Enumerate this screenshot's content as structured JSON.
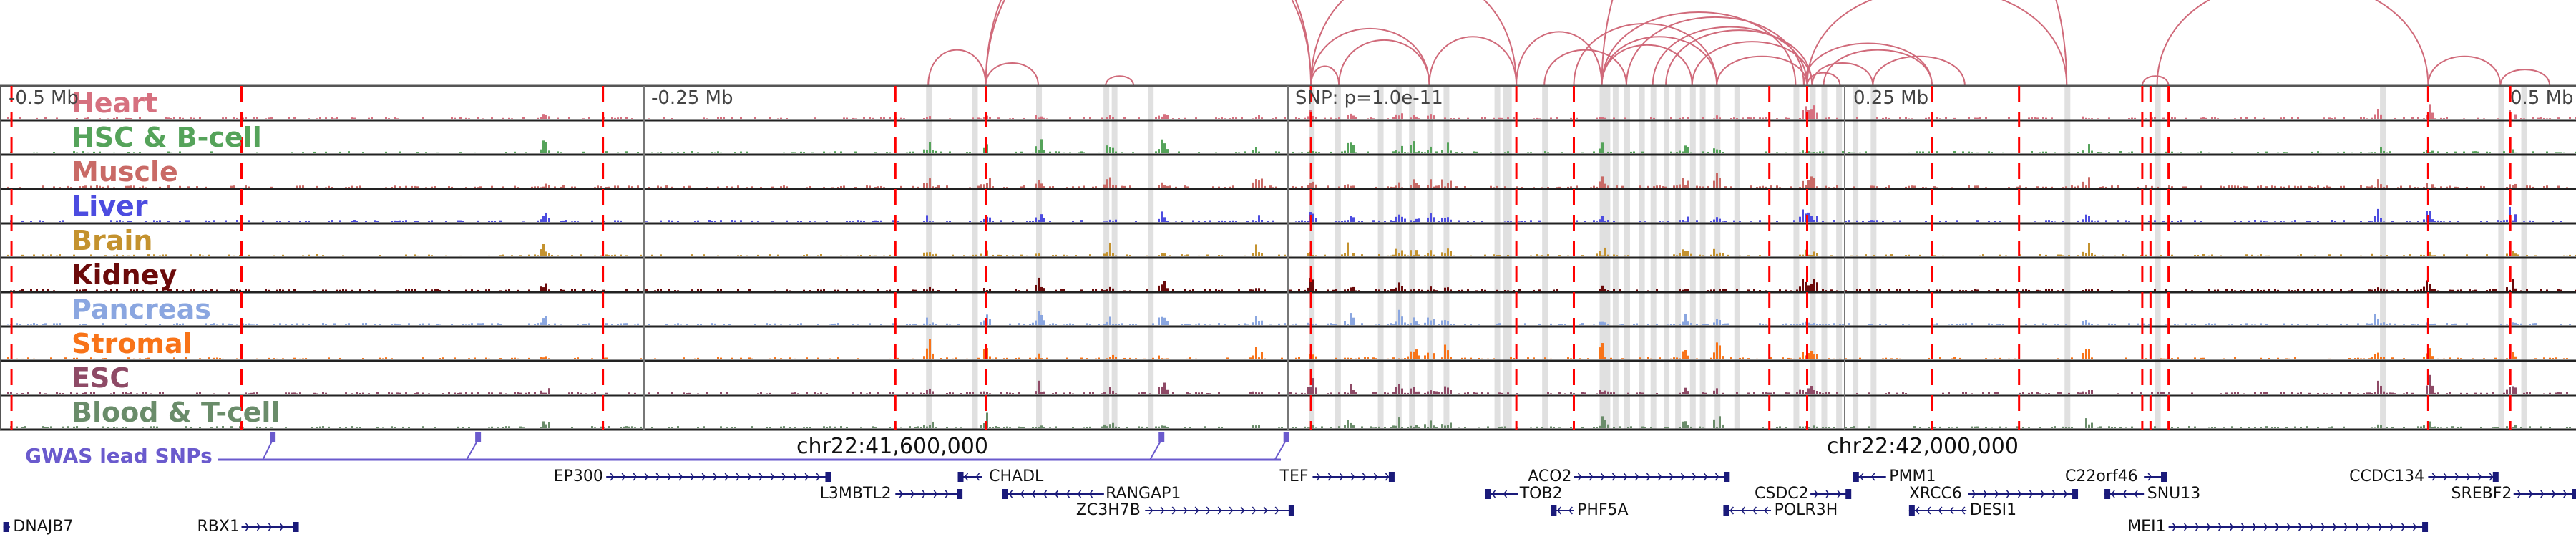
{
  "tracks": [
    {
      "name": "Heart",
      "color": "#d6707f"
    },
    {
      "name": "HSC & B-cell",
      "color": "#55a35a"
    },
    {
      "name": "Muscle",
      "color": "#c96a66"
    },
    {
      "name": "Liver",
      "color": "#4c4ce0"
    },
    {
      "name": "Brain",
      "color": "#c4922e"
    },
    {
      "name": "Kidney",
      "color": "#6b0a0a"
    },
    {
      "name": "Pancreas",
      "color": "#8aa6e0"
    },
    {
      "name": "Stromal",
      "color": "#f87318"
    },
    {
      "name": "ESC",
      "color": "#8e4a66"
    },
    {
      "name": "Blood & T-cell",
      "color": "#6a8c6a"
    }
  ],
  "axis": {
    "labels": [
      "-0.5 Mb",
      "-0.25 Mb",
      "SNP: p=1.0e-11",
      "0.25 Mb",
      "0.5 Mb"
    ]
  },
  "coordinates": {
    "left": "chr22:41,600,000",
    "right": "chr22:42,000,000"
  },
  "gwas": {
    "label": "GWAS lead SNPs",
    "color": "#6a5acd"
  },
  "genes": [
    {
      "name": "EP300",
      "strand": "+"
    },
    {
      "name": "L3MBTL2",
      "strand": "+"
    },
    {
      "name": "CHADL",
      "strand": "-"
    },
    {
      "name": "RANGAP1",
      "strand": "-"
    },
    {
      "name": "ZC3H7B",
      "strand": "+"
    },
    {
      "name": "TEF",
      "strand": "+"
    },
    {
      "name": "ACO2",
      "strand": "+"
    },
    {
      "name": "TOB2",
      "strand": "-"
    },
    {
      "name": "PHF5A",
      "strand": "-"
    },
    {
      "name": "CSDC2",
      "strand": "+"
    },
    {
      "name": "POLR3H",
      "strand": "-"
    },
    {
      "name": "PMM1",
      "strand": "-"
    },
    {
      "name": "XRCC6",
      "strand": "+"
    },
    {
      "name": "DESI1",
      "strand": "-"
    },
    {
      "name": "C22orf46",
      "strand": "+"
    },
    {
      "name": "SNU13",
      "strand": "-"
    },
    {
      "name": "MEI1",
      "strand": "+"
    },
    {
      "name": "CCDC134",
      "strand": "+"
    },
    {
      "name": "SREBF2",
      "strand": "+"
    },
    {
      "name": "DNAJB7",
      "strand": "-"
    },
    {
      "name": "RBX1",
      "strand": "+"
    }
  ],
  "colors": {
    "arc": "#d06a7a",
    "snp_line": "#ff0000",
    "highlight": "#e0e0e0",
    "gene": "#1a1a7a"
  }
}
